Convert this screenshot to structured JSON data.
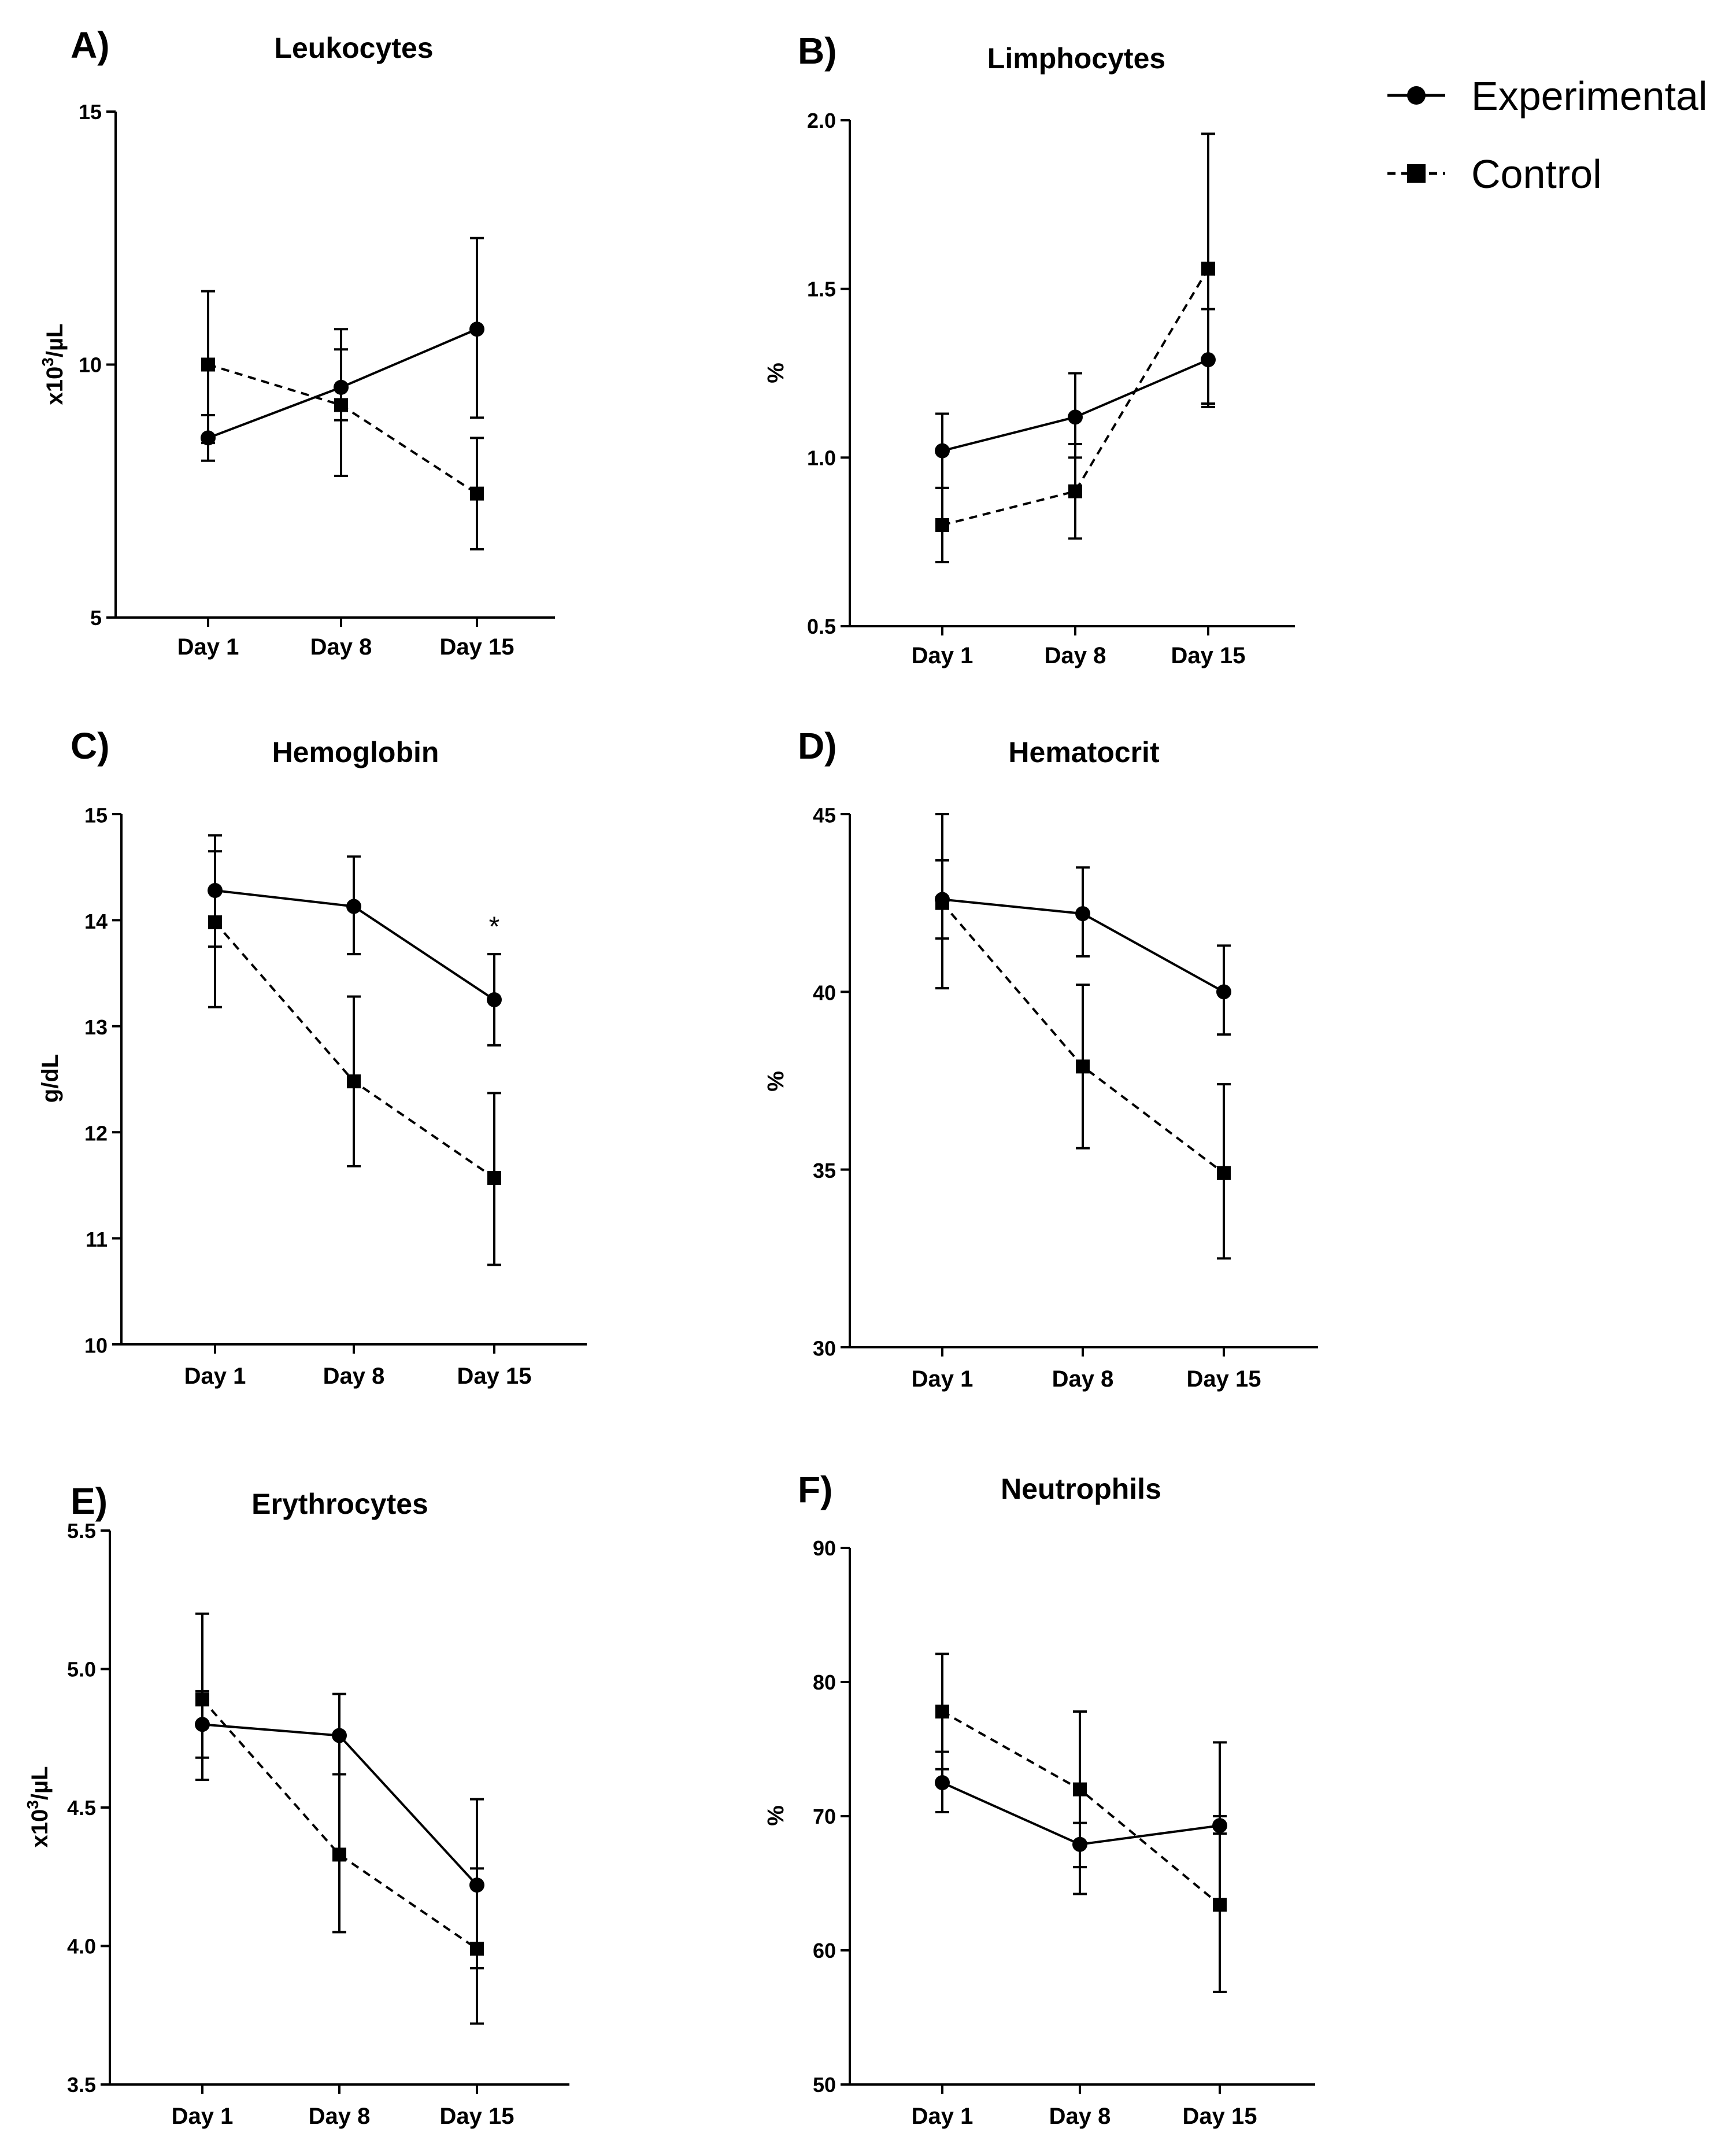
{
  "legend": [
    {
      "label": "Experimental",
      "marker": "circle",
      "line": "solid"
    },
    {
      "label": "Control",
      "marker": "square",
      "line": "dashed"
    }
  ],
  "colors": {
    "ink": "#000000",
    "background": "#ffffff"
  },
  "chart_data": [
    {
      "type": "line",
      "panel": "A)",
      "title": "Leukocytes",
      "ylabel_prefix": "x10",
      "ylabel_sup": "3",
      "ylabel_suffix": "/µL",
      "categories": [
        "Day 1",
        "Day 8",
        "Day 15"
      ],
      "ylim": [
        5,
        15
      ],
      "yticks": [
        "5",
        "10",
        "15"
      ],
      "series": [
        {
          "name": "Experimental",
          "values": [
            8.55,
            9.55,
            10.7
          ],
          "err_low": [
            8.1,
            8.9,
            8.95
          ],
          "err_high": [
            9.0,
            10.7,
            12.5
          ]
        },
        {
          "name": "Control",
          "values": [
            10.0,
            9.2,
            7.45
          ],
          "err_low": [
            8.45,
            7.8,
            6.35
          ],
          "err_high": [
            11.45,
            10.3,
            8.55
          ]
        }
      ],
      "annotations": []
    },
    {
      "type": "line",
      "panel": "B)",
      "title": "Limphocytes",
      "ylabel_prefix": "%",
      "ylabel_sup": "",
      "ylabel_suffix": "",
      "categories": [
        "Day 1",
        "Day 8",
        "Day 15"
      ],
      "ylim": [
        0.5,
        2.0
      ],
      "yticks": [
        "0.5",
        "1.0",
        "1.5",
        "2.0"
      ],
      "series": [
        {
          "name": "Experimental",
          "values": [
            1.02,
            1.12,
            1.29
          ],
          "err_low": [
            0.91,
            1.0,
            1.15
          ],
          "err_high": [
            1.13,
            1.25,
            1.44
          ]
        },
        {
          "name": "Control",
          "values": [
            0.8,
            0.9,
            1.56
          ],
          "err_low": [
            0.69,
            0.76,
            1.16
          ],
          "err_high": [
            0.91,
            1.04,
            1.96
          ]
        }
      ],
      "annotations": []
    },
    {
      "type": "line",
      "panel": "C)",
      "title": "Hemoglobin",
      "ylabel_prefix": "g/dL",
      "ylabel_sup": "",
      "ylabel_suffix": "",
      "categories": [
        "Day 1",
        "Day 8",
        "Day 15"
      ],
      "ylim": [
        10,
        15
      ],
      "yticks": [
        "10",
        "11",
        "12",
        "13",
        "14",
        "15"
      ],
      "series": [
        {
          "name": "Experimental",
          "values": [
            14.28,
            14.13,
            13.25
          ],
          "err_low": [
            13.75,
            13.68,
            12.82
          ],
          "err_high": [
            14.8,
            14.6,
            13.68
          ]
        },
        {
          "name": "Control",
          "values": [
            13.98,
            12.48,
            11.57
          ],
          "err_low": [
            13.18,
            11.68,
            10.75
          ],
          "err_high": [
            14.65,
            13.28,
            12.37
          ]
        }
      ],
      "annotations": [
        {
          "category": "Day 15",
          "text": "*",
          "value": 13.95
        }
      ]
    },
    {
      "type": "line",
      "panel": "D)",
      "title": "Hematocrit",
      "ylabel_prefix": "%",
      "ylabel_sup": "",
      "ylabel_suffix": "",
      "categories": [
        "Day 1",
        "Day 8",
        "Day 15"
      ],
      "ylim": [
        30,
        45
      ],
      "yticks": [
        "30",
        "35",
        "40",
        "45"
      ],
      "series": [
        {
          "name": "Experimental",
          "values": [
            42.6,
            42.2,
            40.0
          ],
          "err_low": [
            40.1,
            41.0,
            38.8
          ],
          "err_high": [
            45.0,
            43.5,
            41.3
          ]
        },
        {
          "name": "Control",
          "values": [
            42.5,
            37.9,
            34.9
          ],
          "err_low": [
            41.5,
            35.6,
            32.5
          ],
          "err_high": [
            43.7,
            40.2,
            37.4
          ]
        }
      ],
      "annotations": []
    },
    {
      "type": "line",
      "panel": "E)",
      "title": "Erythrocytes",
      "ylabel_prefix": "x10",
      "ylabel_sup": "3",
      "ylabel_suffix": "/µL",
      "categories": [
        "Day 1",
        "Day 8",
        "Day 15"
      ],
      "ylim": [
        3.5,
        5.5
      ],
      "yticks": [
        "3.5",
        "4.0",
        "4.5",
        "5.0",
        "5.5"
      ],
      "series": [
        {
          "name": "Experimental",
          "values": [
            4.8,
            4.76,
            4.22
          ],
          "err_low": [
            4.68,
            4.62,
            3.92
          ],
          "err_high": [
            4.92,
            4.91,
            4.53
          ]
        },
        {
          "name": "Control",
          "values": [
            4.89,
            4.33,
            3.99
          ],
          "err_low": [
            4.6,
            4.05,
            3.72
          ],
          "err_high": [
            5.2,
            4.62,
            4.28
          ]
        }
      ],
      "annotations": []
    },
    {
      "type": "line",
      "panel": "F)",
      "title": "Neutrophils",
      "ylabel_prefix": "%",
      "ylabel_sup": "",
      "ylabel_suffix": "",
      "categories": [
        "Day 1",
        "Day 8",
        "Day 15"
      ],
      "ylim": [
        50,
        90
      ],
      "yticks": [
        "50",
        "60",
        "70",
        "80",
        "90"
      ],
      "series": [
        {
          "name": "Experimental",
          "values": [
            72.5,
            67.9,
            69.3
          ],
          "err_low": [
            70.3,
            66.2,
            68.7
          ],
          "err_high": [
            74.8,
            69.5,
            70.0
          ]
        },
        {
          "name": "Control",
          "values": [
            77.8,
            72.0,
            63.4
          ],
          "err_low": [
            73.5,
            64.2,
            56.9
          ],
          "err_high": [
            82.1,
            77.8,
            75.5
          ]
        }
      ],
      "annotations": []
    }
  ]
}
